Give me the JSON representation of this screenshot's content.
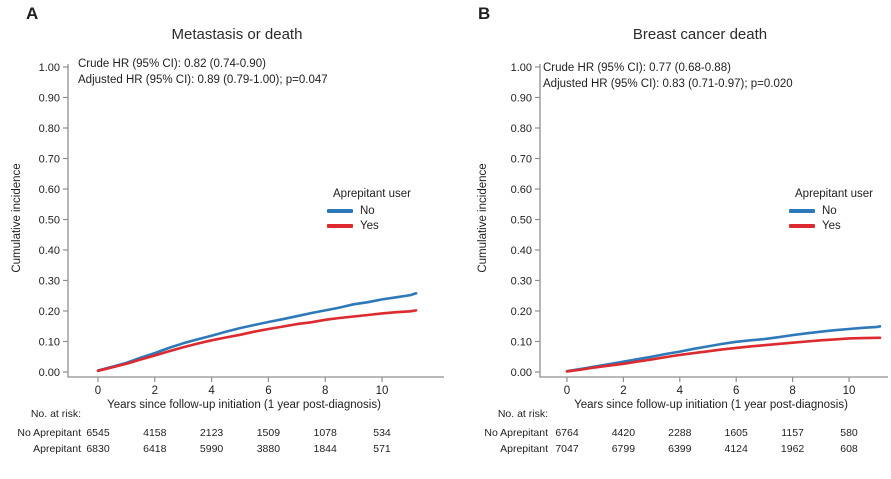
{
  "accent_colors": {
    "no_line": "#2e79b9",
    "yes_line": "#dc2a2e",
    "axis": "#8f8f8f"
  },
  "chart_data": [
    {
      "type": "line",
      "panel_label": "A",
      "title": "Metastasis or death",
      "annotations": [
        "Crude HR (95% CI): 0.82 (0.74-0.90)",
        "Adjusted HR (95% CI): 0.89 (0.79-1.00); p=0.047"
      ],
      "xlabel": "Years since follow-up initiation (1 year post-diagnosis)",
      "ylabel": "Cumulative incidence",
      "xlim": [
        0,
        11.2
      ],
      "ylim": [
        0,
        1.0
      ],
      "grid": false,
      "yticks": [
        "0.00",
        "0.10",
        "0.20",
        "0.30",
        "0.40",
        "0.50",
        "0.60",
        "0.70",
        "0.80",
        "0.90",
        "1.00"
      ],
      "xticks": [
        "0",
        "2",
        "4",
        "6",
        "8",
        "10"
      ],
      "legend": {
        "title": "Aprepitant user",
        "position": "right-middle",
        "entries": [
          {
            "label": "No",
            "color": "#2e79b9"
          },
          {
            "label": "Yes",
            "color": "#dc2a2e"
          }
        ]
      },
      "x": [
        0,
        0.5,
        1,
        1.5,
        2,
        2.5,
        3,
        3.5,
        4,
        4.5,
        5,
        5.5,
        6,
        6.5,
        7,
        7.5,
        8,
        8.5,
        9,
        9.5,
        10,
        10.5,
        11,
        11.2
      ],
      "series": [
        {
          "name": "No",
          "color": "#2e79b9",
          "y": [
            0.005,
            0.017,
            0.03,
            0.047,
            0.062,
            0.079,
            0.094,
            0.107,
            0.119,
            0.132,
            0.144,
            0.154,
            0.164,
            0.173,
            0.183,
            0.193,
            0.202,
            0.211,
            0.222,
            0.229,
            0.238,
            0.245,
            0.252,
            0.258
          ]
        },
        {
          "name": "Yes",
          "color": "#dc2a2e",
          "y": [
            0.004,
            0.015,
            0.027,
            0.041,
            0.054,
            0.068,
            0.081,
            0.093,
            0.104,
            0.113,
            0.122,
            0.132,
            0.141,
            0.149,
            0.157,
            0.163,
            0.171,
            0.177,
            0.182,
            0.187,
            0.192,
            0.196,
            0.199,
            0.202
          ]
        }
      ],
      "risk_table": {
        "heading": "No. at risk:",
        "rows": [
          {
            "label": "No Aprepitant",
            "values": [
              "6545",
              "4158",
              "2123",
              "1509",
              "1078",
              "534"
            ]
          },
          {
            "label": "Aprepitant",
            "values": [
              "6830",
              "6418",
              "5990",
              "3880",
              "1844",
              "571"
            ]
          }
        ]
      }
    },
    {
      "type": "line",
      "panel_label": "B",
      "title": "Breast cancer death",
      "annotations": [
        "Crude HR (95% CI): 0.77 (0.68-0.88)",
        "Adjusted HR (95% CI): 0.83 (0.71-0.97); p=0.020"
      ],
      "xlabel": "Years since follow-up initiation (1 year post-diagnosis)",
      "ylabel": "Cumulative incidence",
      "xlim": [
        0,
        11.1
      ],
      "ylim": [
        0,
        1.0
      ],
      "grid": false,
      "yticks": [
        "0.00",
        "0.10",
        "0.20",
        "0.30",
        "0.40",
        "0.50",
        "0.60",
        "0.70",
        "0.80",
        "0.90",
        "1.00"
      ],
      "xticks": [
        "0",
        "2",
        "4",
        "6",
        "8",
        "10"
      ],
      "legend": {
        "title": "Aprepitant user",
        "position": "right-middle",
        "entries": [
          {
            "label": "No",
            "color": "#2e79b9"
          },
          {
            "label": "Yes",
            "color": "#dc2a2e"
          }
        ]
      },
      "x": [
        0,
        0.5,
        1,
        1.5,
        2,
        2.5,
        3,
        3.5,
        4,
        4.5,
        5,
        5.5,
        6,
        6.5,
        7,
        7.5,
        8,
        8.5,
        9,
        9.5,
        10,
        10.5,
        11,
        11.1
      ],
      "series": [
        {
          "name": "No",
          "color": "#2e79b9",
          "y": [
            0.003,
            0.01,
            0.018,
            0.026,
            0.034,
            0.042,
            0.05,
            0.059,
            0.067,
            0.076,
            0.084,
            0.092,
            0.099,
            0.104,
            0.108,
            0.114,
            0.121,
            0.127,
            0.132,
            0.137,
            0.141,
            0.145,
            0.148,
            0.15
          ]
        },
        {
          "name": "Yes",
          "color": "#dc2a2e",
          "y": [
            0.002,
            0.008,
            0.015,
            0.021,
            0.027,
            0.034,
            0.041,
            0.049,
            0.056,
            0.062,
            0.068,
            0.074,
            0.079,
            0.084,
            0.088,
            0.092,
            0.096,
            0.1,
            0.104,
            0.107,
            0.11,
            0.111,
            0.112,
            0.112
          ]
        }
      ],
      "risk_table": {
        "heading": "No. at risk:",
        "rows": [
          {
            "label": "No Aprepitant",
            "values": [
              "6764",
              "4420",
              "2288",
              "1605",
              "1157",
              "580"
            ]
          },
          {
            "label": "Aprepitant",
            "values": [
              "7047",
              "6799",
              "6399",
              "4124",
              "1962",
              "608"
            ]
          }
        ]
      }
    }
  ]
}
